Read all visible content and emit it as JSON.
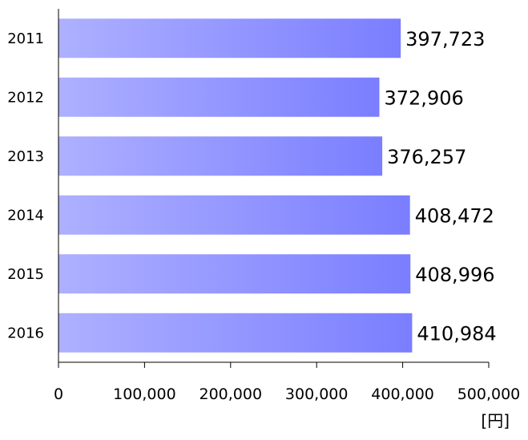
{
  "chart_data": {
    "type": "bar",
    "orientation": "horizontal",
    "categories": [
      "2011",
      "2012",
      "2013",
      "2014",
      "2015",
      "2016"
    ],
    "values": [
      397723,
      372906,
      376257,
      408472,
      408996,
      410984
    ],
    "value_labels": [
      "397,723",
      "372,906",
      "376,257",
      "408,472",
      "408,996",
      "410,984"
    ],
    "xlim": [
      0,
      500000
    ],
    "x_ticks": [
      0,
      100000,
      200000,
      300000,
      400000,
      500000
    ],
    "x_tick_labels": [
      "0",
      "100,000",
      "200,000",
      "300,000",
      "400,000",
      "500,000"
    ],
    "unit_label": "[円]",
    "grid": false,
    "bar_color_start": "#aeb0ff",
    "bar_color_end": "#7a7eff"
  }
}
